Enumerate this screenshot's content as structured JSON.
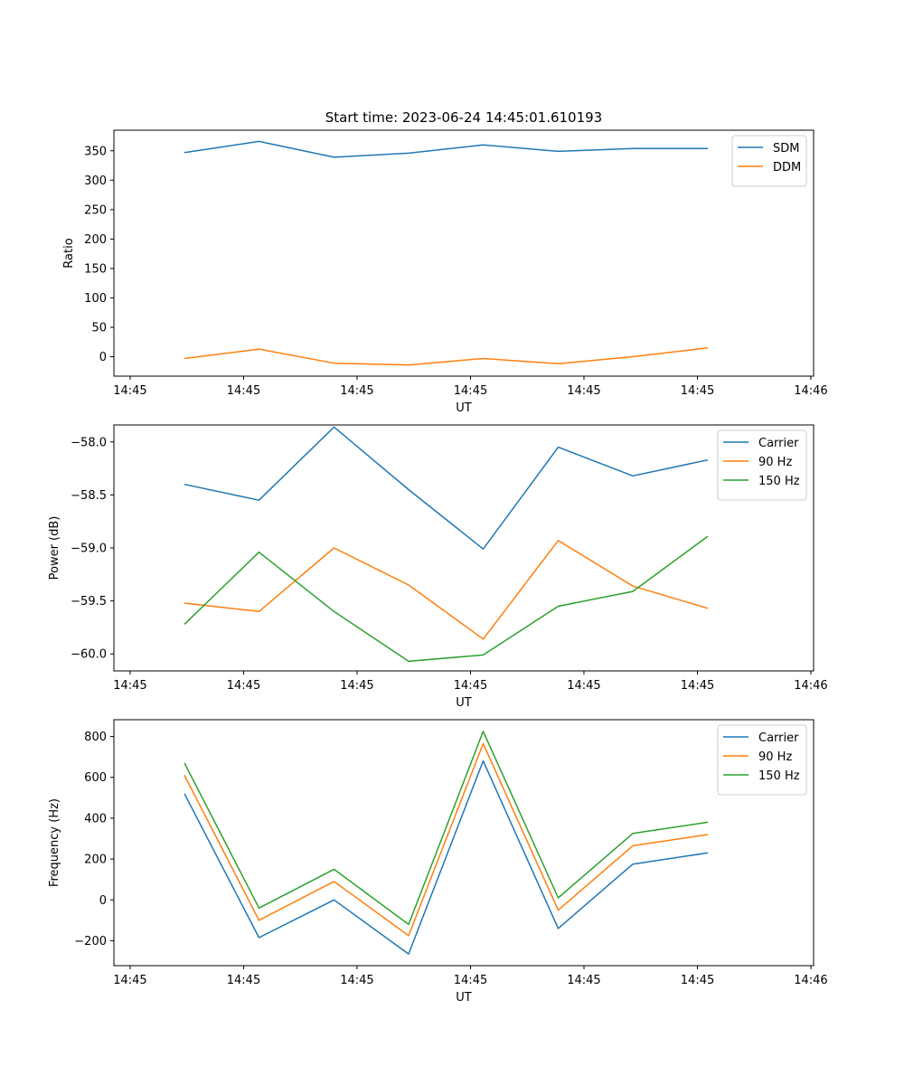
{
  "chart_data": [
    {
      "type": "line",
      "title": "Start time: 2023-06-24 14:45:01.610193",
      "xlabel": "UT",
      "ylabel": "Ratio",
      "x_tick_labels": [
        "14:45",
        "14:45",
        "14:45",
        "14:45",
        "14:45",
        "14:45",
        "14:46"
      ],
      "y_ticks": [
        0,
        50,
        100,
        150,
        200,
        250,
        300,
        350
      ],
      "ylim": [
        -33,
        385
      ],
      "grid": false,
      "legend_position": "top-right",
      "series": [
        {
          "name": "SDM",
          "color": "#1f77b4",
          "values": [
            347,
            366,
            339,
            346,
            360,
            349,
            354,
            354
          ]
        },
        {
          "name": "DDM",
          "color": "#ff7f0e",
          "values": [
            -3,
            13,
            -11,
            -14,
            -3,
            -12,
            0,
            15
          ]
        }
      ]
    },
    {
      "type": "line",
      "title": "",
      "xlabel": "UT",
      "ylabel": "Power (dB)",
      "x_tick_labels": [
        "14:45",
        "14:45",
        "14:45",
        "14:45",
        "14:45",
        "14:45",
        "14:46"
      ],
      "y_ticks": [
        -60.0,
        -59.5,
        -59.0,
        -58.5,
        -58.0
      ],
      "y_tick_labels": [
        "−60.0",
        "−59.5",
        "−59.0",
        "−58.5",
        "−58.0"
      ],
      "ylim": [
        -60.16,
        -57.84
      ],
      "grid": false,
      "legend_position": "top-right",
      "series": [
        {
          "name": "Carrier",
          "color": "#1f77b4",
          "values": [
            -58.4,
            -58.55,
            -57.86,
            -58.45,
            -59.01,
            -58.05,
            -58.32,
            -58.17
          ]
        },
        {
          "name": "90 Hz",
          "color": "#ff7f0e",
          "values": [
            -59.52,
            -59.6,
            -59.0,
            -59.35,
            -59.86,
            -58.93,
            -59.36,
            -59.57
          ]
        },
        {
          "name": "150 Hz",
          "color": "#2ca02c",
          "values": [
            -59.72,
            -59.04,
            -59.6,
            -60.07,
            -60.01,
            -59.55,
            -59.41,
            -58.89
          ]
        }
      ]
    },
    {
      "type": "line",
      "title": "",
      "xlabel": "UT",
      "ylabel": "Frequency (Hz)",
      "x_tick_labels": [
        "14:45",
        "14:45",
        "14:45",
        "14:45",
        "14:45",
        "14:45",
        "14:46"
      ],
      "y_ticks": [
        -200,
        0,
        200,
        400,
        600,
        800
      ],
      "y_tick_labels": [
        "−200",
        "0",
        "200",
        "400",
        "600",
        "800"
      ],
      "ylim": [
        -322,
        882
      ],
      "grid": false,
      "legend_position": "top-right",
      "series": [
        {
          "name": "Carrier",
          "color": "#1f77b4",
          "values": [
            520,
            -185,
            0,
            -265,
            680,
            -140,
            175,
            230
          ]
        },
        {
          "name": "90 Hz",
          "color": "#ff7f0e",
          "values": [
            610,
            -100,
            90,
            -175,
            765,
            -50,
            265,
            320
          ]
        },
        {
          "name": "150 Hz",
          "color": "#2ca02c",
          "values": [
            670,
            -40,
            150,
            -120,
            825,
            10,
            325,
            380
          ]
        }
      ]
    }
  ]
}
